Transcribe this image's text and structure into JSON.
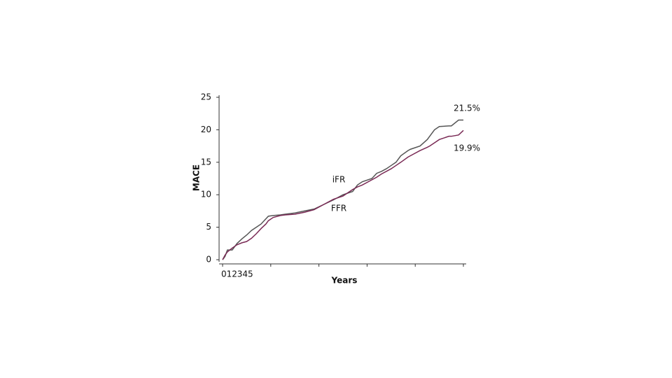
{
  "chart_data": {
    "type": "line",
    "xlabel": "Years",
    "ylabel": "MACE",
    "xlim": [
      0,
      5
    ],
    "xticks": [
      0,
      1,
      2,
      3,
      4,
      5
    ],
    "ylim": [
      0,
      25
    ],
    "yticks": [
      0,
      5,
      10,
      15,
      20,
      25
    ],
    "grid": false,
    "x": [
      0,
      0.05,
      0.1,
      0.15,
      0.2,
      0.3,
      0.4,
      0.5,
      0.6,
      0.7,
      0.8,
      0.9,
      0.95,
      1.05,
      1.2,
      1.3,
      1.5,
      1.7,
      1.9,
      2.1,
      2.3,
      2.5,
      2.7,
      2.8,
      2.9,
      3.1,
      3.2,
      3.3,
      3.4,
      3.5,
      3.6,
      3.7,
      3.85,
      3.9,
      4.1,
      4.25,
      4.3,
      4.4,
      4.5,
      4.7,
      4.75,
      4.9,
      5
    ],
    "series": [
      {
        "name": "iFR",
        "color": "#555555",
        "values": [
          0,
          0.5,
          1.5,
          1.5,
          1.5,
          2.5,
          3.2,
          3.8,
          4.5,
          5,
          5.5,
          6.3,
          6.7,
          6.8,
          6.9,
          7,
          7.2,
          7.5,
          7.8,
          8.5,
          9.2,
          10,
          10.5,
          11.5,
          12,
          12.5,
          13.3,
          13.6,
          14,
          14.5,
          15,
          16,
          16.8,
          17,
          17.5,
          18.5,
          19,
          20,
          20.5,
          20.6,
          20.6,
          21.5,
          21.5
        ]
      },
      {
        "name": "FFR",
        "color": "#7a2a55",
        "values": [
          0,
          0.7,
          1.2,
          1.5,
          1.8,
          2.3,
          2.6,
          2.8,
          3.3,
          4,
          4.8,
          5.5,
          6,
          6.5,
          6.8,
          6.9,
          7,
          7.3,
          7.7,
          8.5,
          9.3,
          9.8,
          10.8,
          11.2,
          11.5,
          12.3,
          12.7,
          13.2,
          13.6,
          14,
          14.5,
          15,
          15.8,
          16,
          16.8,
          17.3,
          17.5,
          18,
          18.5,
          19,
          19,
          19.2,
          19.9
        ]
      }
    ],
    "annotations": [
      "21.5%",
      "19.9%"
    ]
  }
}
